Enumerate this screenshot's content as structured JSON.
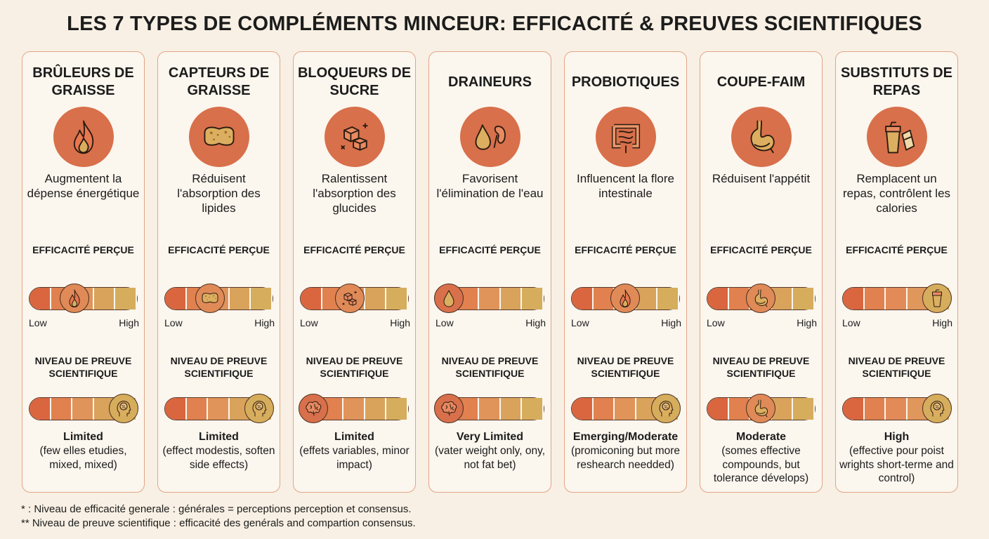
{
  "title": "LES 7 TYPES DE COMPLÉMENTS MINCEUR: EFFICACITÉ & PREUVES SCIENTIFIQUES",
  "colors": {
    "accent": "#d8704b",
    "card_border": "#e2a587",
    "background": "#f8f0e4",
    "bar_low": "#d9663f",
    "bar_high": "#d6ad5c"
  },
  "labels": {
    "efficacy": "EFFICACITÉ PERÇUE",
    "evidence": "NIVEAU DE PREUVE SCIENTIFIQUE",
    "low": "Low",
    "high": "High"
  },
  "cards": [
    {
      "title": "BRÛLEURS DE GRAISSE",
      "icon": "flame-icon",
      "description": "Augmentent la dépense énergétique",
      "efficacy_level": 0.4,
      "efficacy_knob_icon": "flame-icon",
      "evidence_level": 1.0,
      "evidence_knob_icon": "head-brain-icon",
      "evidence_result": "Limited",
      "evidence_detail": "(few elles etudies, mixed, mixed)"
    },
    {
      "title": "CAPTEURS DE GRAISSE",
      "icon": "sponge-icon",
      "description": "Réduisent l'absorption des lipides",
      "efficacy_level": 0.4,
      "efficacy_knob_icon": "sponge-icon",
      "evidence_level": 1.0,
      "evidence_knob_icon": "head-brain-icon",
      "evidence_result": "Limited",
      "evidence_detail": "(effect modestis, soften side effects)"
    },
    {
      "title": "BLOQUEURS DE SUCRE",
      "icon": "sugar-cubes-icon",
      "description": "Ralentissent l'absorption des glucides",
      "efficacy_level": 0.45,
      "efficacy_knob_icon": "sugar-cubes-icon",
      "evidence_level": 0.0,
      "evidence_knob_icon": "brain-icon",
      "evidence_result": "Limited",
      "evidence_detail": "(effets variables, minor impact)"
    },
    {
      "title": "DRAINEURS",
      "icon": "drop-kidney-icon",
      "description": "Favorisent l'élimination de l'eau",
      "efficacy_level": 0.0,
      "efficacy_knob_icon": "drop-icon",
      "evidence_level": 0.0,
      "evidence_knob_icon": "brain-icon",
      "evidence_result": "Very Limited",
      "evidence_detail": "(vater weight only, ony, not fat bet)"
    },
    {
      "title": "PROBIOTIQUES",
      "icon": "intestine-icon",
      "description": "Influencent la flore intestinale",
      "efficacy_level": 0.5,
      "efficacy_knob_icon": "flame-icon",
      "evidence_level": 1.0,
      "evidence_knob_icon": "head-brain-icon",
      "evidence_result": "Emerging/Moderate",
      "evidence_detail": "(promiconing but more reshearch needded)"
    },
    {
      "title": "COUPE-FAIM",
      "icon": "stomach-icon",
      "description": "Réduisent l'appétit",
      "efficacy_level": 0.5,
      "efficacy_knob_icon": "stomach-icon",
      "evidence_level": 0.5,
      "evidence_knob_icon": "stomach-icon",
      "evidence_result": "Moderate",
      "evidence_detail": "(somes effective compounds, but tolerance dévelops)"
    },
    {
      "title": "SUBSTITUTS DE REPAS",
      "icon": "shaker-bar-icon",
      "description": "Remplacent un repas, contrôlent les calories",
      "efficacy_level": 1.0,
      "efficacy_knob_icon": "shaker-icon",
      "evidence_level": 1.0,
      "evidence_knob_icon": "head-brain-icon",
      "evidence_result": "High",
      "evidence_detail": "(effective pour poist wrights short-terme and control)"
    }
  ],
  "footer": [
    "* : Niveau de efficacité generale : générales = perceptions perception et consensus.",
    "** Niveau de preuve scientifique : efficacité des genérals and compartion consensus."
  ]
}
